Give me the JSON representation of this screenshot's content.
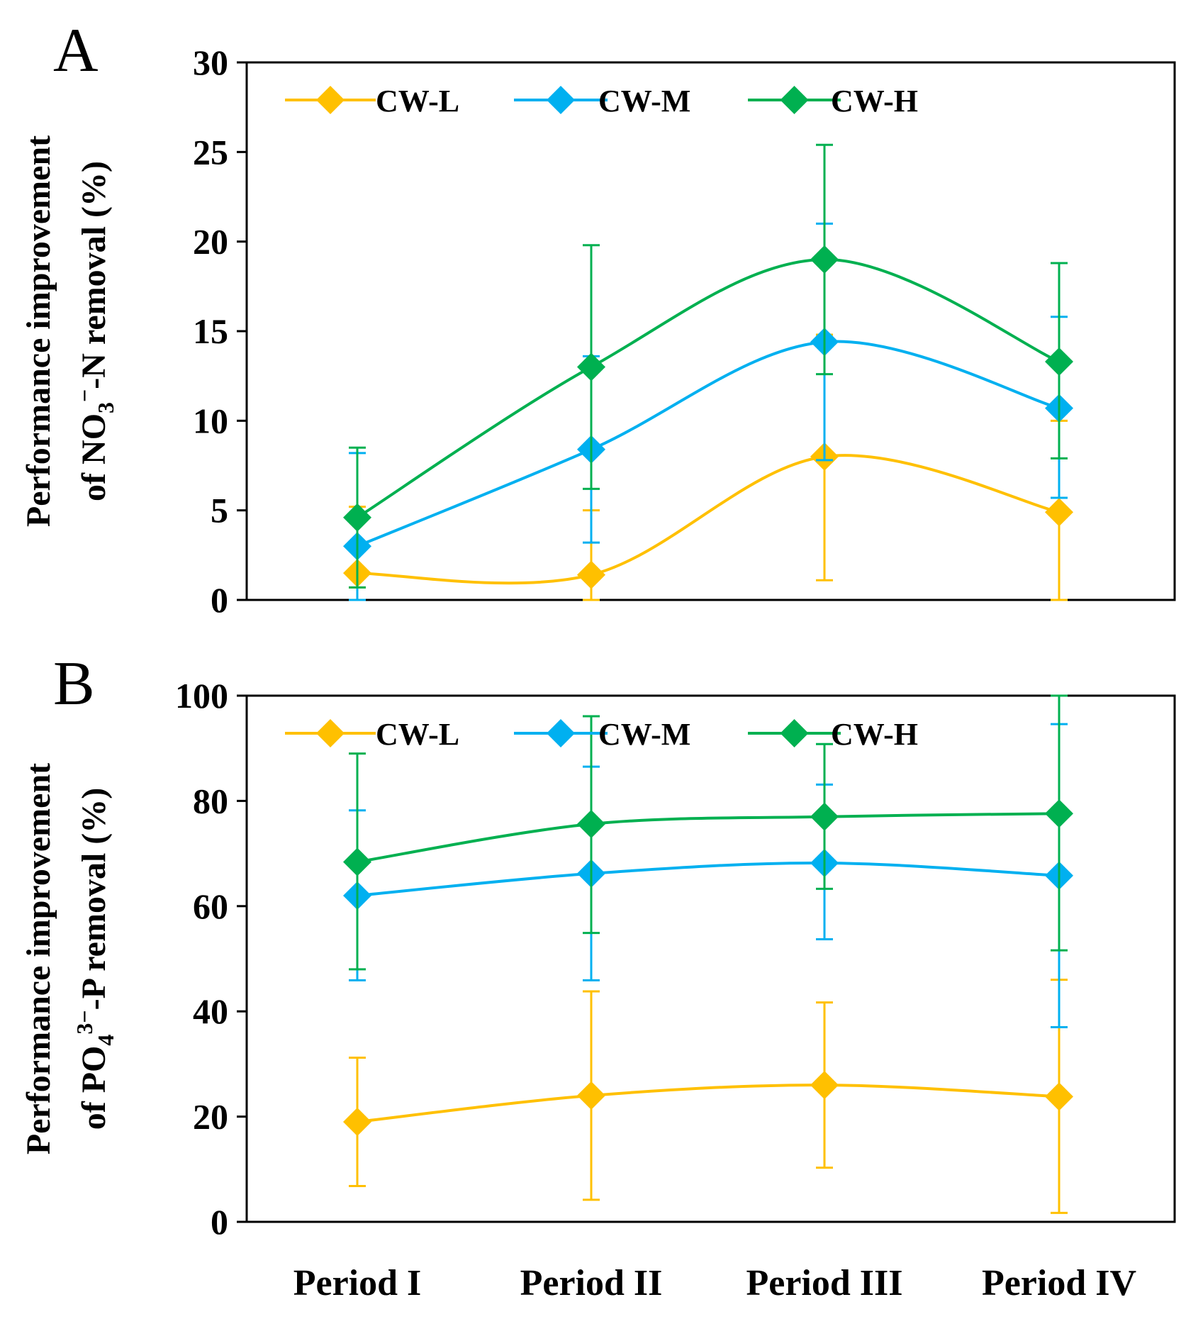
{
  "figure": {
    "x_categories": [
      "Period I",
      "Period II",
      "Period III",
      "Period IV"
    ]
  },
  "colors": {
    "CW-L": "#FFC000",
    "CW-M": "#00B0F0",
    "CW-H": "#00B050"
  },
  "chart_data": [
    {
      "type": "line",
      "panel_label": "A",
      "title": "",
      "ylabel_line1": "Performance improvement",
      "ylabel_line2": {
        "prefix": "of NO",
        "sub": "3",
        "sup": "−",
        "suffix": "-N removal (%)"
      },
      "xlabel": "",
      "categories": [
        "Period I",
        "Period II",
        "Period III",
        "Period IV"
      ],
      "ylim": [
        0,
        30
      ],
      "yticks": [
        0,
        5,
        10,
        15,
        20,
        25,
        30
      ],
      "legend_position": "top",
      "series": [
        {
          "name": "CW-L",
          "values": [
            1.5,
            1.4,
            8.0,
            4.9
          ],
          "err_upper": [
            5.2,
            5.0,
            14.8,
            10.0
          ],
          "err_lower": [
            0.7,
            0.0,
            1.1,
            0.0
          ]
        },
        {
          "name": "CW-M",
          "values": [
            3.0,
            8.4,
            14.4,
            10.7
          ],
          "err_upper": [
            8.2,
            13.6,
            21.0,
            15.8
          ],
          "err_lower": [
            0.0,
            3.2,
            7.8,
            5.7
          ]
        },
        {
          "name": "CW-H",
          "values": [
            4.6,
            13.0,
            19.0,
            13.3
          ],
          "err_upper": [
            8.5,
            19.8,
            25.4,
            18.8
          ],
          "err_lower": [
            0.7,
            6.2,
            12.6,
            7.9
          ]
        }
      ]
    },
    {
      "type": "line",
      "panel_label": "B",
      "title": "",
      "ylabel_line1": "Performance improvement",
      "ylabel_line2": {
        "prefix": "of  PO",
        "sub": "4",
        "sup": "3−",
        "suffix": "-P removal (%)"
      },
      "xlabel": "",
      "categories": [
        "Period I",
        "Period II",
        "Period III",
        "Period IV"
      ],
      "ylim": [
        0,
        100
      ],
      "yticks": [
        0,
        20,
        40,
        60,
        80,
        100
      ],
      "legend_position": "top",
      "series": [
        {
          "name": "CW-L",
          "values": [
            19.0,
            24.0,
            26.0,
            23.8
          ],
          "err_upper": [
            31.2,
            43.8,
            41.7,
            46.0
          ],
          "err_lower": [
            6.8,
            4.2,
            10.3,
            1.7
          ]
        },
        {
          "name": "CW-M",
          "values": [
            62.0,
            66.2,
            68.2,
            65.8
          ],
          "err_upper": [
            78.2,
            86.5,
            83.1,
            94.6
          ],
          "err_lower": [
            45.9,
            45.9,
            53.7,
            37.0
          ]
        },
        {
          "name": "CW-H",
          "values": [
            68.4,
            75.6,
            77.0,
            77.6
          ],
          "err_upper": [
            89.0,
            96.1,
            90.8,
            100.0
          ],
          "err_lower": [
            48.0,
            54.9,
            63.3,
            51.6
          ]
        }
      ]
    }
  ]
}
